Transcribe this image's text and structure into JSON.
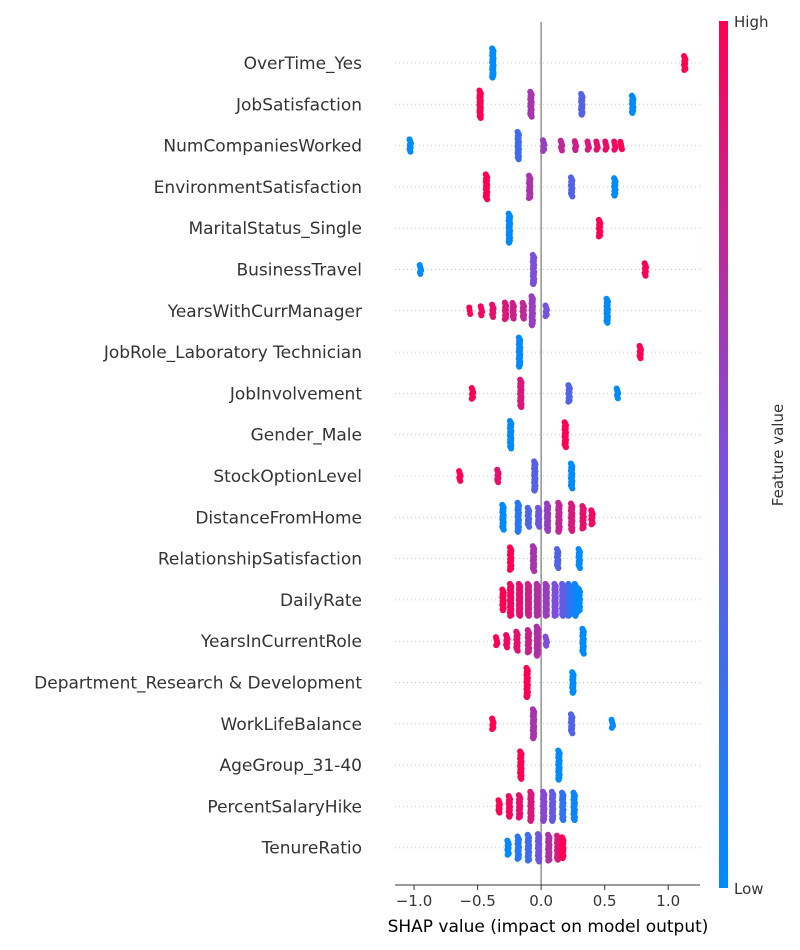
{
  "chart_data": {
    "type": "scatter",
    "subtype": "shap-beeswarm-summary",
    "xlabel": "SHAP value (impact on model output)",
    "xlim": [
      -1.15,
      1.25
    ],
    "xticks": [
      -1.0,
      -0.5,
      0.0,
      0.5,
      1.0
    ],
    "xtick_labels": [
      "−1.0",
      "−0.5",
      "0.0",
      "0.5",
      "1.0"
    ],
    "colorbar": {
      "label": "Feature value",
      "high_label": "High",
      "low_label": "Low",
      "low_color": "#008bfb",
      "high_color": "#ff0052"
    },
    "features": [
      {
        "name": "OverTime_Yes",
        "clusters": [
          [
            -0.38,
            0.0,
            30
          ],
          [
            1.13,
            1.0,
            12
          ]
        ]
      },
      {
        "name": "JobSatisfaction",
        "clusters": [
          [
            -0.48,
            1.0,
            28
          ],
          [
            -0.08,
            0.67,
            25
          ],
          [
            0.32,
            0.33,
            20
          ],
          [
            0.72,
            0.0,
            16
          ]
        ]
      },
      {
        "name": "NumCompaniesWorked",
        "clusters": [
          [
            -1.03,
            0.0,
            10
          ],
          [
            -0.18,
            0.25,
            28
          ],
          [
            0.02,
            0.6,
            8
          ],
          [
            0.16,
            0.75,
            7
          ],
          [
            0.27,
            0.8,
            6
          ],
          [
            0.37,
            0.85,
            5
          ],
          [
            0.44,
            0.9,
            5
          ],
          [
            0.51,
            0.92,
            5
          ],
          [
            0.58,
            0.95,
            5
          ],
          [
            0.63,
            1.0,
            4
          ]
        ]
      },
      {
        "name": "EnvironmentSatisfaction",
        "clusters": [
          [
            -0.43,
            1.0,
            25
          ],
          [
            -0.09,
            0.67,
            22
          ],
          [
            0.24,
            0.33,
            18
          ],
          [
            0.58,
            0.0,
            16
          ]
        ]
      },
      {
        "name": "MaritalStatus_Single",
        "clusters": [
          [
            -0.25,
            0.0,
            30
          ],
          [
            0.46,
            1.0,
            15
          ]
        ]
      },
      {
        "name": "BusinessTravel",
        "clusters": [
          [
            -0.95,
            0.0,
            6
          ],
          [
            -0.06,
            0.5,
            30
          ],
          [
            0.82,
            1.0,
            10
          ]
        ]
      },
      {
        "name": "YearsWithCurrManager",
        "clusters": [
          [
            -0.56,
            1.0,
            3
          ],
          [
            -0.47,
            0.95,
            6
          ],
          [
            -0.38,
            0.9,
            10
          ],
          [
            -0.28,
            0.85,
            15
          ],
          [
            -0.22,
            0.8,
            14
          ],
          [
            -0.14,
            0.75,
            14
          ],
          [
            -0.07,
            0.6,
            30
          ],
          [
            0.04,
            0.45,
            8
          ],
          [
            0.52,
            0.0,
            24
          ]
        ]
      },
      {
        "name": "JobRole_Laboratory Technician",
        "clusters": [
          [
            -0.17,
            0.0,
            30
          ],
          [
            0.78,
            1.0,
            10
          ]
        ]
      },
      {
        "name": "JobInvolvement",
        "clusters": [
          [
            -0.54,
            1.0,
            8
          ],
          [
            -0.16,
            0.85,
            28
          ],
          [
            0.22,
            0.33,
            15
          ],
          [
            0.6,
            0.0,
            7
          ]
        ]
      },
      {
        "name": "Gender_Male",
        "clusters": [
          [
            -0.24,
            0.0,
            28
          ],
          [
            0.19,
            1.0,
            25
          ]
        ]
      },
      {
        "name": "StockOptionLevel",
        "clusters": [
          [
            -0.64,
            1.0,
            7
          ],
          [
            -0.34,
            0.9,
            10
          ],
          [
            -0.05,
            0.35,
            30
          ],
          [
            0.24,
            0.0,
            25
          ]
        ]
      },
      {
        "name": "DistanceFromHome",
        "clusters": [
          [
            -0.3,
            0.0,
            25
          ],
          [
            -0.18,
            0.15,
            30
          ],
          [
            -0.1,
            0.3,
            18
          ],
          [
            -0.02,
            0.45,
            18
          ],
          [
            0.05,
            0.6,
            28
          ],
          [
            0.14,
            0.75,
            30
          ],
          [
            0.24,
            0.85,
            28
          ],
          [
            0.33,
            0.9,
            22
          ],
          [
            0.4,
            0.95,
            12
          ]
        ]
      },
      {
        "name": "RelationshipSatisfaction",
        "clusters": [
          [
            -0.24,
            1.0,
            22
          ],
          [
            -0.06,
            0.67,
            25
          ],
          [
            0.13,
            0.33,
            18
          ],
          [
            0.3,
            0.0,
            18
          ]
        ]
      },
      {
        "name": "DailyRate",
        "clusters": [
          [
            -0.3,
            1.0,
            20
          ],
          [
            -0.24,
            0.95,
            40
          ],
          [
            -0.17,
            0.9,
            42
          ],
          [
            -0.1,
            0.8,
            42
          ],
          [
            -0.03,
            0.7,
            40
          ],
          [
            0.04,
            0.6,
            40
          ],
          [
            0.11,
            0.5,
            40
          ],
          [
            0.17,
            0.4,
            38
          ],
          [
            0.22,
            0.2,
            36
          ],
          [
            0.27,
            0.05,
            34
          ],
          [
            0.3,
            0.0,
            22
          ]
        ]
      },
      {
        "name": "YearsInCurrentRole",
        "clusters": [
          [
            -0.35,
            1.0,
            5
          ],
          [
            -0.27,
            0.95,
            10
          ],
          [
            -0.19,
            0.9,
            18
          ],
          [
            -0.1,
            0.8,
            22
          ],
          [
            -0.03,
            0.7,
            30
          ],
          [
            0.04,
            0.5,
            6
          ],
          [
            0.33,
            0.0,
            25
          ]
        ]
      },
      {
        "name": "Department_Research & Development",
        "clusters": [
          [
            -0.11,
            1.0,
            30
          ],
          [
            0.25,
            0.0,
            20
          ]
        ]
      },
      {
        "name": "WorkLifeBalance",
        "clusters": [
          [
            -0.38,
            1.0,
            8
          ],
          [
            -0.06,
            0.67,
            30
          ],
          [
            0.24,
            0.33,
            18
          ],
          [
            0.56,
            0.0,
            5
          ]
        ]
      },
      {
        "name": "AgeGroup_31-40",
        "clusters": [
          [
            -0.16,
            1.0,
            28
          ],
          [
            0.14,
            0.0,
            30
          ]
        ]
      },
      {
        "name": "PercentSalaryHike",
        "clusters": [
          [
            -0.33,
            1.0,
            10
          ],
          [
            -0.25,
            0.95,
            20
          ],
          [
            -0.17,
            0.9,
            22
          ],
          [
            -0.08,
            0.85,
            30
          ],
          [
            0.02,
            0.55,
            30
          ],
          [
            0.09,
            0.4,
            30
          ],
          [
            0.17,
            0.2,
            28
          ],
          [
            0.26,
            0.05,
            28
          ]
        ]
      },
      {
        "name": "TenureRatio",
        "clusters": [
          [
            -0.26,
            0.0,
            12
          ],
          [
            -0.18,
            0.15,
            22
          ],
          [
            -0.1,
            0.25,
            26
          ],
          [
            -0.02,
            0.45,
            28
          ],
          [
            0.06,
            0.7,
            26
          ],
          [
            0.13,
            0.85,
            24
          ],
          [
            0.17,
            1.0,
            20
          ]
        ]
      }
    ]
  }
}
